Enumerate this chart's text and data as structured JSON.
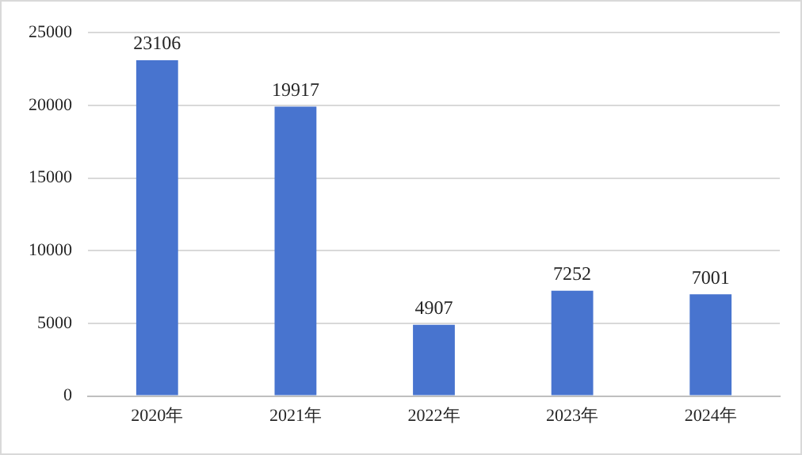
{
  "chart_data": {
    "type": "bar",
    "categories": [
      "2020年",
      "2021年",
      "2022年",
      "2023年",
      "2024年"
    ],
    "values": [
      23106,
      19917,
      4907,
      7252,
      7001
    ],
    "color": "#4874cf",
    "ylim": [
      0,
      25000
    ],
    "yticks": [
      0,
      5000,
      10000,
      15000,
      20000,
      25000
    ],
    "grid": "y",
    "data_labels": true
  }
}
